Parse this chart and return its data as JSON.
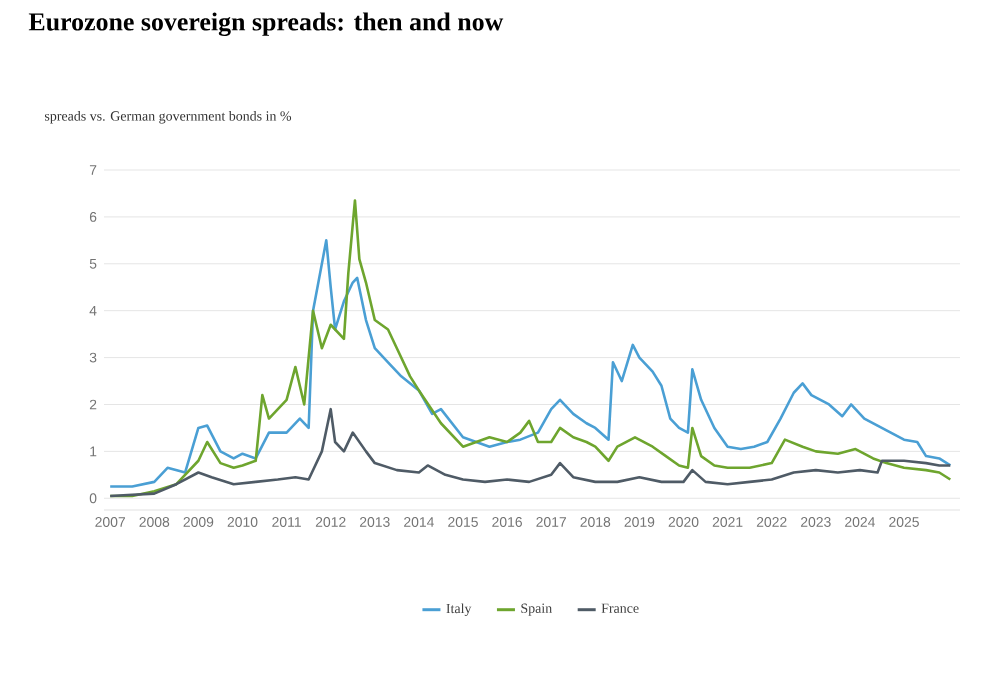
{
  "chart_data": {
    "type": "line",
    "title": "Eurozone sovereign spreads: then and now",
    "ylabel": "spreads vs. German government bonds in %",
    "xlim": [
      2006.86,
      2026.27
    ],
    "xticks": [
      2007,
      2008,
      2009,
      2010,
      2011,
      2012,
      2013,
      2014,
      2015,
      2016,
      2017,
      2018,
      2019,
      2020,
      2021,
      2022,
      2023,
      2024,
      2025
    ],
    "ylim": [
      -0.25,
      7
    ],
    "yticks": [
      0,
      1,
      2,
      3,
      4,
      5,
      6,
      7
    ],
    "grid": "y",
    "legend": "bottom",
    "marker": "none",
    "line_style": "solid",
    "series": [
      {
        "name": "Italy",
        "color": "#4a9fd4",
        "x": [
          2007.0,
          2007.5,
          2008.0,
          2008.3,
          2008.7,
          2009.0,
          2009.2,
          2009.5,
          2009.8,
          2010.0,
          2010.3,
          2010.6,
          2011.0,
          2011.3,
          2011.5,
          2011.6,
          2011.9,
          2012.0,
          2012.1,
          2012.3,
          2012.5,
          2012.6,
          2012.8,
          2013.0,
          2013.3,
          2013.6,
          2014.0,
          2014.3,
          2014.5,
          2015.0,
          2015.3,
          2015.6,
          2016.0,
          2016.3,
          2016.7,
          2017.0,
          2017.2,
          2017.5,
          2017.8,
          2018.0,
          2018.3,
          2018.4,
          2018.6,
          2018.85,
          2019.0,
          2019.3,
          2019.5,
          2019.7,
          2019.9,
          2020.1,
          2020.2,
          2020.4,
          2020.7,
          2021.0,
          2021.3,
          2021.6,
          2021.9,
          2022.2,
          2022.5,
          2022.7,
          2022.9,
          2023.3,
          2023.6,
          2023.8,
          2024.1,
          2024.4,
          2024.7,
          2025.0,
          2025.3,
          2025.5,
          2025.8,
          2026.05
        ],
        "values": [
          0.25,
          0.25,
          0.35,
          0.65,
          0.55,
          1.5,
          1.55,
          1.0,
          0.85,
          0.95,
          0.85,
          1.4,
          1.4,
          1.7,
          1.5,
          4.0,
          5.5,
          4.5,
          3.6,
          4.2,
          4.6,
          4.7,
          3.8,
          3.2,
          2.9,
          2.6,
          2.3,
          1.8,
          1.9,
          1.3,
          1.2,
          1.1,
          1.2,
          1.25,
          1.4,
          1.9,
          2.1,
          1.8,
          1.6,
          1.5,
          1.25,
          2.9,
          2.5,
          3.27,
          3.0,
          2.7,
          2.4,
          1.7,
          1.5,
          1.4,
          2.75,
          2.1,
          1.5,
          1.1,
          1.05,
          1.1,
          1.2,
          1.7,
          2.25,
          2.45,
          2.2,
          2.0,
          1.75,
          2.0,
          1.7,
          1.55,
          1.4,
          1.25,
          1.2,
          0.9,
          0.85,
          0.7
        ]
      },
      {
        "name": "Spain",
        "color": "#6ea52e",
        "x": [
          2007.0,
          2007.5,
          2008.0,
          2008.5,
          2009.0,
          2009.2,
          2009.5,
          2009.8,
          2010.0,
          2010.3,
          2010.45,
          2010.6,
          2011.0,
          2011.2,
          2011.4,
          2011.6,
          2011.8,
          2012.0,
          2012.3,
          2012.4,
          2012.55,
          2012.65,
          2012.8,
          2013.0,
          2013.3,
          2013.5,
          2013.8,
          2014.0,
          2014.5,
          2015.0,
          2015.3,
          2015.6,
          2016.0,
          2016.3,
          2016.5,
          2016.7,
          2017.0,
          2017.2,
          2017.5,
          2017.8,
          2018.0,
          2018.3,
          2018.5,
          2018.9,
          2019.3,
          2019.6,
          2019.9,
          2020.1,
          2020.2,
          2020.4,
          2020.7,
          2021.0,
          2021.5,
          2022.0,
          2022.3,
          2022.7,
          2023.0,
          2023.5,
          2023.9,
          2024.3,
          2024.6,
          2025.0,
          2025.5,
          2025.8,
          2026.05
        ],
        "values": [
          0.05,
          0.05,
          0.15,
          0.3,
          0.8,
          1.2,
          0.75,
          0.65,
          0.7,
          0.8,
          2.2,
          1.7,
          2.1,
          2.8,
          2.0,
          4.0,
          3.2,
          3.7,
          3.4,
          4.8,
          6.35,
          5.1,
          4.6,
          3.8,
          3.6,
          3.2,
          2.6,
          2.3,
          1.6,
          1.1,
          1.2,
          1.3,
          1.2,
          1.4,
          1.65,
          1.2,
          1.2,
          1.5,
          1.3,
          1.2,
          1.1,
          0.8,
          1.1,
          1.3,
          1.1,
          0.9,
          0.7,
          0.65,
          1.5,
          0.9,
          0.7,
          0.65,
          0.65,
          0.75,
          1.25,
          1.1,
          1.0,
          0.95,
          1.05,
          0.85,
          0.75,
          0.65,
          0.6,
          0.55,
          0.4
        ]
      },
      {
        "name": "France",
        "color": "#4f5b66",
        "x": [
          2007.0,
          2008.0,
          2008.5,
          2009.0,
          2009.3,
          2009.8,
          2010.3,
          2010.8,
          2011.2,
          2011.5,
          2011.8,
          2012.0,
          2012.1,
          2012.3,
          2012.5,
          2012.8,
          2013.0,
          2013.5,
          2014.0,
          2014.2,
          2014.6,
          2015.0,
          2015.5,
          2016.0,
          2016.5,
          2017.0,
          2017.2,
          2017.5,
          2018.0,
          2018.5,
          2019.0,
          2019.5,
          2020.0,
          2020.2,
          2020.5,
          2021.0,
          2021.5,
          2022.0,
          2022.5,
          2023.0,
          2023.5,
          2024.0,
          2024.4,
          2024.5,
          2025.0,
          2025.5,
          2025.8,
          2026.05
        ],
        "values": [
          0.05,
          0.1,
          0.3,
          0.55,
          0.45,
          0.3,
          0.35,
          0.4,
          0.45,
          0.4,
          1.0,
          1.9,
          1.2,
          1.0,
          1.4,
          1.0,
          0.75,
          0.6,
          0.55,
          0.7,
          0.5,
          0.4,
          0.35,
          0.4,
          0.35,
          0.5,
          0.75,
          0.45,
          0.35,
          0.35,
          0.45,
          0.35,
          0.35,
          0.6,
          0.35,
          0.3,
          0.35,
          0.4,
          0.55,
          0.6,
          0.55,
          0.6,
          0.55,
          0.8,
          0.8,
          0.75,
          0.7,
          0.7
        ]
      }
    ]
  }
}
